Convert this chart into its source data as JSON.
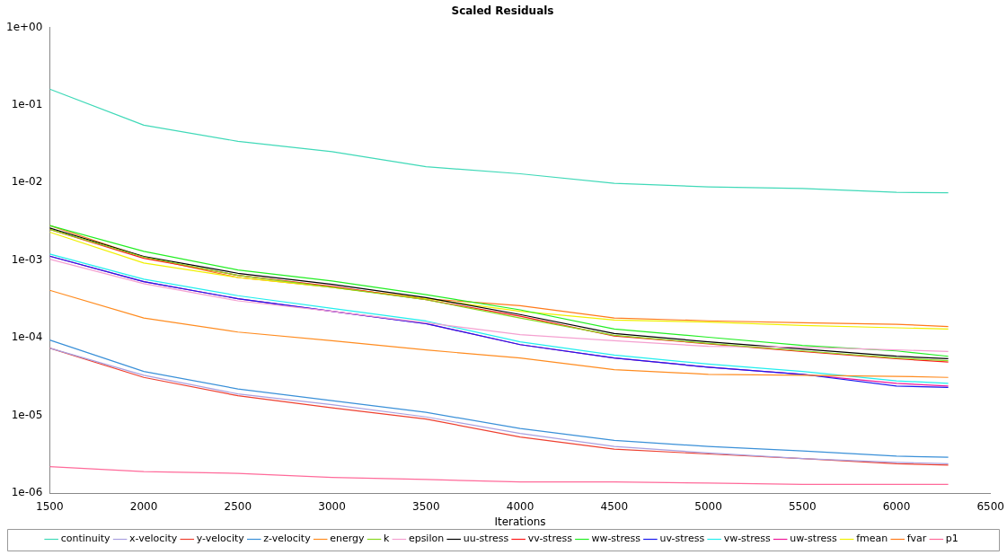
{
  "chart_data": {
    "type": "line",
    "title": "Scaled Residuals",
    "xlabel": "Iterations",
    "x": [
      1500,
      2000,
      2500,
      3000,
      3500,
      4000,
      4500,
      5000,
      5500,
      6000,
      6275
    ],
    "xlim": [
      1500,
      6500
    ],
    "xticks": [
      1500,
      2000,
      2500,
      3000,
      3500,
      4000,
      4500,
      5000,
      5500,
      6000,
      6500
    ],
    "log": "y",
    "ylim": [
      1e-06,
      1
    ],
    "yticks": [
      {
        "value": 1e-06,
        "label": "1e-06"
      },
      {
        "value": 1e-05,
        "label": "1e-05"
      },
      {
        "value": 0.0001,
        "label": "1e-04"
      },
      {
        "value": 0.001,
        "label": "1e-03"
      },
      {
        "value": 0.01,
        "label": "1e-02"
      },
      {
        "value": 0.1,
        "label": "1e-01"
      },
      {
        "value": 1,
        "label": "1e+00"
      }
    ],
    "grid": false,
    "legend": "bottom",
    "marker": "none",
    "line_style": "solid",
    "series": [
      {
        "name": "continuity",
        "color": "#40d9b8",
        "values": [
          0.16,
          0.055,
          0.034,
          0.025,
          0.016,
          0.013,
          0.0098,
          0.0088,
          0.0084,
          0.0075,
          0.0074
        ]
      },
      {
        "name": "x-velocity",
        "color": "#a9a0e0",
        "values": [
          7.4e-05,
          3.3e-05,
          1.9e-05,
          1.38e-05,
          9.6e-06,
          5.9e-06,
          4e-06,
          3.3e-06,
          2.8e-06,
          2.5e-06,
          2.4e-06
        ]
      },
      {
        "name": "y-velocity",
        "color": "#ee4030",
        "values": [
          7.4e-05,
          3.1e-05,
          1.8e-05,
          1.26e-05,
          9e-06,
          5.3e-06,
          3.7e-06,
          3.2e-06,
          2.8e-06,
          2.4e-06,
          2.3e-06
        ]
      },
      {
        "name": "z-velocity",
        "color": "#3a90d8",
        "values": [
          9.4e-05,
          3.7e-05,
          2.2e-05,
          1.56e-05,
          1.1e-05,
          6.8e-06,
          4.8e-06,
          4e-06,
          3.5e-06,
          3e-06,
          2.9e-06
        ]
      },
      {
        "name": "energy",
        "color": "#ff8c20",
        "values": [
          0.00041,
          0.00018,
          0.000119,
          9.2e-05,
          7e-05,
          5.5e-05,
          3.9e-05,
          3.4e-05,
          3.3e-05,
          3.2e-05,
          3.1e-05
        ]
      },
      {
        "name": "k",
        "color": "#88d820",
        "values": [
          0.0025,
          0.0011,
          0.00064,
          0.00045,
          0.00031,
          0.00018,
          0.000108,
          8.5e-05,
          6.8e-05,
          5.5e-05,
          5.1e-05
        ]
      },
      {
        "name": "epsilon",
        "color": "#f4a0d0",
        "values": [
          0.00103,
          0.0005,
          0.0003,
          0.00022,
          0.000157,
          0.00011,
          9.2e-05,
          7.8e-05,
          7.6e-05,
          7e-05,
          6.7e-05
        ]
      },
      {
        "name": "uu-stress",
        "color": "#000000",
        "values": [
          0.0026,
          0.00112,
          0.00068,
          0.00049,
          0.00033,
          0.0002,
          0.000114,
          8.9e-05,
          7.2e-05,
          5.8e-05,
          5.4e-05
        ]
      },
      {
        "name": "vv-stress",
        "color": "#ff1a1a",
        "values": [
          0.0025,
          0.00106,
          0.00064,
          0.00046,
          0.00031,
          0.00019,
          0.000106,
          8.4e-05,
          6.7e-05,
          5.4e-05,
          4.9e-05
        ]
      },
      {
        "name": "ww-stress",
        "color": "#22ee22",
        "values": [
          0.0028,
          0.0013,
          0.00075,
          0.00054,
          0.00036,
          0.00023,
          0.00013,
          0.000102,
          8e-05,
          6.8e-05,
          5.8e-05
        ]
      },
      {
        "name": "uv-stress",
        "color": "#1a1aee",
        "values": [
          0.00113,
          0.00053,
          0.00032,
          0.00022,
          0.000153,
          8.2e-05,
          5.5e-05,
          4.2e-05,
          3.4e-05,
          2.4e-05,
          2.3e-05
        ]
      },
      {
        "name": "vw-stress",
        "color": "#22eeee",
        "values": [
          0.0012,
          0.00057,
          0.00035,
          0.00024,
          0.000165,
          8.9e-05,
          6e-05,
          4.6e-05,
          3.7e-05,
          2.8e-05,
          2.6e-05
        ]
      },
      {
        "name": "uw-stress",
        "color": "#ee1a9a",
        "values": [
          0.00113,
          0.00053,
          0.00032,
          0.00022,
          0.000153,
          8.2e-05,
          5.5e-05,
          4.2e-05,
          3.4e-05,
          2.6e-05,
          2.4e-05
        ]
      },
      {
        "name": "fmean",
        "color": "#f0f000",
        "values": [
          0.0023,
          0.00092,
          0.0006,
          0.00045,
          0.00032,
          0.00022,
          0.00017,
          0.00016,
          0.000145,
          0.000135,
          0.00013
        ]
      },
      {
        "name": "fvar",
        "color": "#ff7a1a",
        "values": [
          0.0028,
          0.0011,
          0.0006,
          0.00045,
          0.00032,
          0.00026,
          0.00018,
          0.000166,
          0.000157,
          0.00015,
          0.00014
        ]
      },
      {
        "name": "p1",
        "color": "#ff6a9a",
        "values": [
          2.2e-06,
          1.9e-06,
          1.8e-06,
          1.6e-06,
          1.5e-06,
          1.4e-06,
          1.4e-06,
          1.35e-06,
          1.3e-06,
          1.3e-06,
          1.3e-06
        ]
      }
    ]
  }
}
